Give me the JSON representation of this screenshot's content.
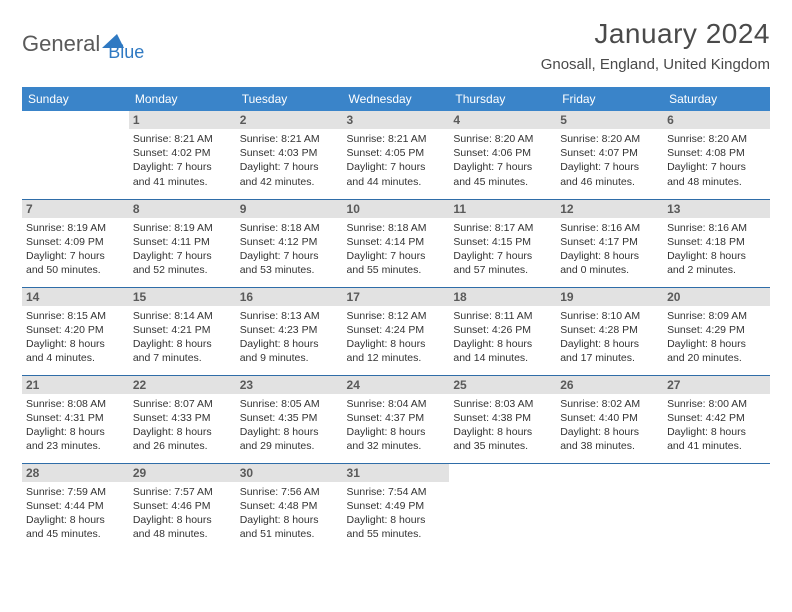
{
  "logo": {
    "word1": "General",
    "word2": "Blue",
    "color1": "#5a5a5a",
    "color2": "#2f79c2"
  },
  "title": {
    "month": "January 2024",
    "location": "Gnosall, England, United Kingdom"
  },
  "style": {
    "header_bg": "#3a84c9",
    "header_fg": "#ffffff",
    "daynum_bg": "#e2e2e2",
    "daynum_fg": "#5a5a5a",
    "divider": "#2f6da8",
    "text": "#333333",
    "title_color": "#4a4a4a",
    "body_font_size": 10.5,
    "header_font_size": 12,
    "title_font_size": 28,
    "location_font_size": 15
  },
  "day_labels": [
    "Sunday",
    "Monday",
    "Tuesday",
    "Wednesday",
    "Thursday",
    "Friday",
    "Saturday"
  ],
  "weeks": [
    [
      null,
      {
        "n": "1",
        "sr": "8:21 AM",
        "ss": "4:02 PM",
        "dl": "7 hours and 41 minutes."
      },
      {
        "n": "2",
        "sr": "8:21 AM",
        "ss": "4:03 PM",
        "dl": "7 hours and 42 minutes."
      },
      {
        "n": "3",
        "sr": "8:21 AM",
        "ss": "4:05 PM",
        "dl": "7 hours and 44 minutes."
      },
      {
        "n": "4",
        "sr": "8:20 AM",
        "ss": "4:06 PM",
        "dl": "7 hours and 45 minutes."
      },
      {
        "n": "5",
        "sr": "8:20 AM",
        "ss": "4:07 PM",
        "dl": "7 hours and 46 minutes."
      },
      {
        "n": "6",
        "sr": "8:20 AM",
        "ss": "4:08 PM",
        "dl": "7 hours and 48 minutes."
      }
    ],
    [
      {
        "n": "7",
        "sr": "8:19 AM",
        "ss": "4:09 PM",
        "dl": "7 hours and 50 minutes."
      },
      {
        "n": "8",
        "sr": "8:19 AM",
        "ss": "4:11 PM",
        "dl": "7 hours and 52 minutes."
      },
      {
        "n": "9",
        "sr": "8:18 AM",
        "ss": "4:12 PM",
        "dl": "7 hours and 53 minutes."
      },
      {
        "n": "10",
        "sr": "8:18 AM",
        "ss": "4:14 PM",
        "dl": "7 hours and 55 minutes."
      },
      {
        "n": "11",
        "sr": "8:17 AM",
        "ss": "4:15 PM",
        "dl": "7 hours and 57 minutes."
      },
      {
        "n": "12",
        "sr": "8:16 AM",
        "ss": "4:17 PM",
        "dl": "8 hours and 0 minutes."
      },
      {
        "n": "13",
        "sr": "8:16 AM",
        "ss": "4:18 PM",
        "dl": "8 hours and 2 minutes."
      }
    ],
    [
      {
        "n": "14",
        "sr": "8:15 AM",
        "ss": "4:20 PM",
        "dl": "8 hours and 4 minutes."
      },
      {
        "n": "15",
        "sr": "8:14 AM",
        "ss": "4:21 PM",
        "dl": "8 hours and 7 minutes."
      },
      {
        "n": "16",
        "sr": "8:13 AM",
        "ss": "4:23 PM",
        "dl": "8 hours and 9 minutes."
      },
      {
        "n": "17",
        "sr": "8:12 AM",
        "ss": "4:24 PM",
        "dl": "8 hours and 12 minutes."
      },
      {
        "n": "18",
        "sr": "8:11 AM",
        "ss": "4:26 PM",
        "dl": "8 hours and 14 minutes."
      },
      {
        "n": "19",
        "sr": "8:10 AM",
        "ss": "4:28 PM",
        "dl": "8 hours and 17 minutes."
      },
      {
        "n": "20",
        "sr": "8:09 AM",
        "ss": "4:29 PM",
        "dl": "8 hours and 20 minutes."
      }
    ],
    [
      {
        "n": "21",
        "sr": "8:08 AM",
        "ss": "4:31 PM",
        "dl": "8 hours and 23 minutes."
      },
      {
        "n": "22",
        "sr": "8:07 AM",
        "ss": "4:33 PM",
        "dl": "8 hours and 26 minutes."
      },
      {
        "n": "23",
        "sr": "8:05 AM",
        "ss": "4:35 PM",
        "dl": "8 hours and 29 minutes."
      },
      {
        "n": "24",
        "sr": "8:04 AM",
        "ss": "4:37 PM",
        "dl": "8 hours and 32 minutes."
      },
      {
        "n": "25",
        "sr": "8:03 AM",
        "ss": "4:38 PM",
        "dl": "8 hours and 35 minutes."
      },
      {
        "n": "26",
        "sr": "8:02 AM",
        "ss": "4:40 PM",
        "dl": "8 hours and 38 minutes."
      },
      {
        "n": "27",
        "sr": "8:00 AM",
        "ss": "4:42 PM",
        "dl": "8 hours and 41 minutes."
      }
    ],
    [
      {
        "n": "28",
        "sr": "7:59 AM",
        "ss": "4:44 PM",
        "dl": "8 hours and 45 minutes."
      },
      {
        "n": "29",
        "sr": "7:57 AM",
        "ss": "4:46 PM",
        "dl": "8 hours and 48 minutes."
      },
      {
        "n": "30",
        "sr": "7:56 AM",
        "ss": "4:48 PM",
        "dl": "8 hours and 51 minutes."
      },
      {
        "n": "31",
        "sr": "7:54 AM",
        "ss": "4:49 PM",
        "dl": "8 hours and 55 minutes."
      },
      null,
      null,
      null
    ]
  ]
}
